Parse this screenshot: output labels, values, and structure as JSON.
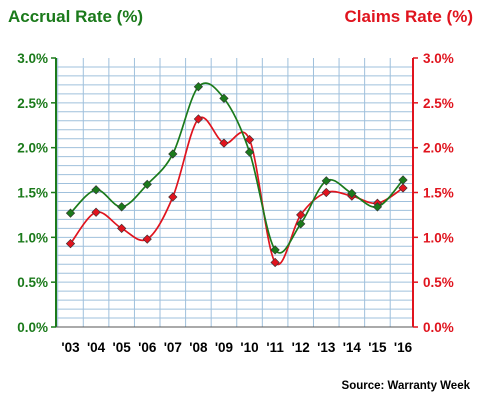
{
  "chart_data": {
    "type": "line",
    "x_categories": [
      "'03",
      "'04",
      "'05",
      "'06",
      "'07",
      "'08",
      "'09",
      "'10",
      "'11",
      "'12",
      "'13",
      "'14",
      "'15",
      "'16"
    ],
    "y_ticks_left": [
      "0.0%",
      "0.5%",
      "1.0%",
      "1.5%",
      "2.0%",
      "2.5%",
      "3.0%"
    ],
    "y_ticks_right": [
      "0.0%",
      "0.5%",
      "1.0%",
      "1.5%",
      "2.0%",
      "2.5%",
      "3.0%"
    ],
    "ylim": [
      0,
      3.0
    ],
    "grid": true,
    "series": [
      {
        "name": "Accrual Rate (%)",
        "axis": "left",
        "color": "#1b7a1b",
        "values": [
          1.27,
          1.53,
          1.34,
          1.59,
          1.93,
          2.68,
          2.55,
          1.95,
          0.86,
          1.15,
          1.63,
          1.49,
          1.34,
          1.64
        ]
      },
      {
        "name": "Claims Rate (%)",
        "axis": "right",
        "color": "#e0141e",
        "values": [
          0.93,
          1.28,
          1.1,
          0.98,
          1.45,
          2.32,
          2.05,
          2.09,
          0.72,
          1.25,
          1.5,
          1.46,
          1.38,
          1.55
        ]
      }
    ],
    "title_left": "Accrual Rate (%)",
    "title_right": "Claims Rate (%)",
    "source": "Source: Warranty Week"
  }
}
